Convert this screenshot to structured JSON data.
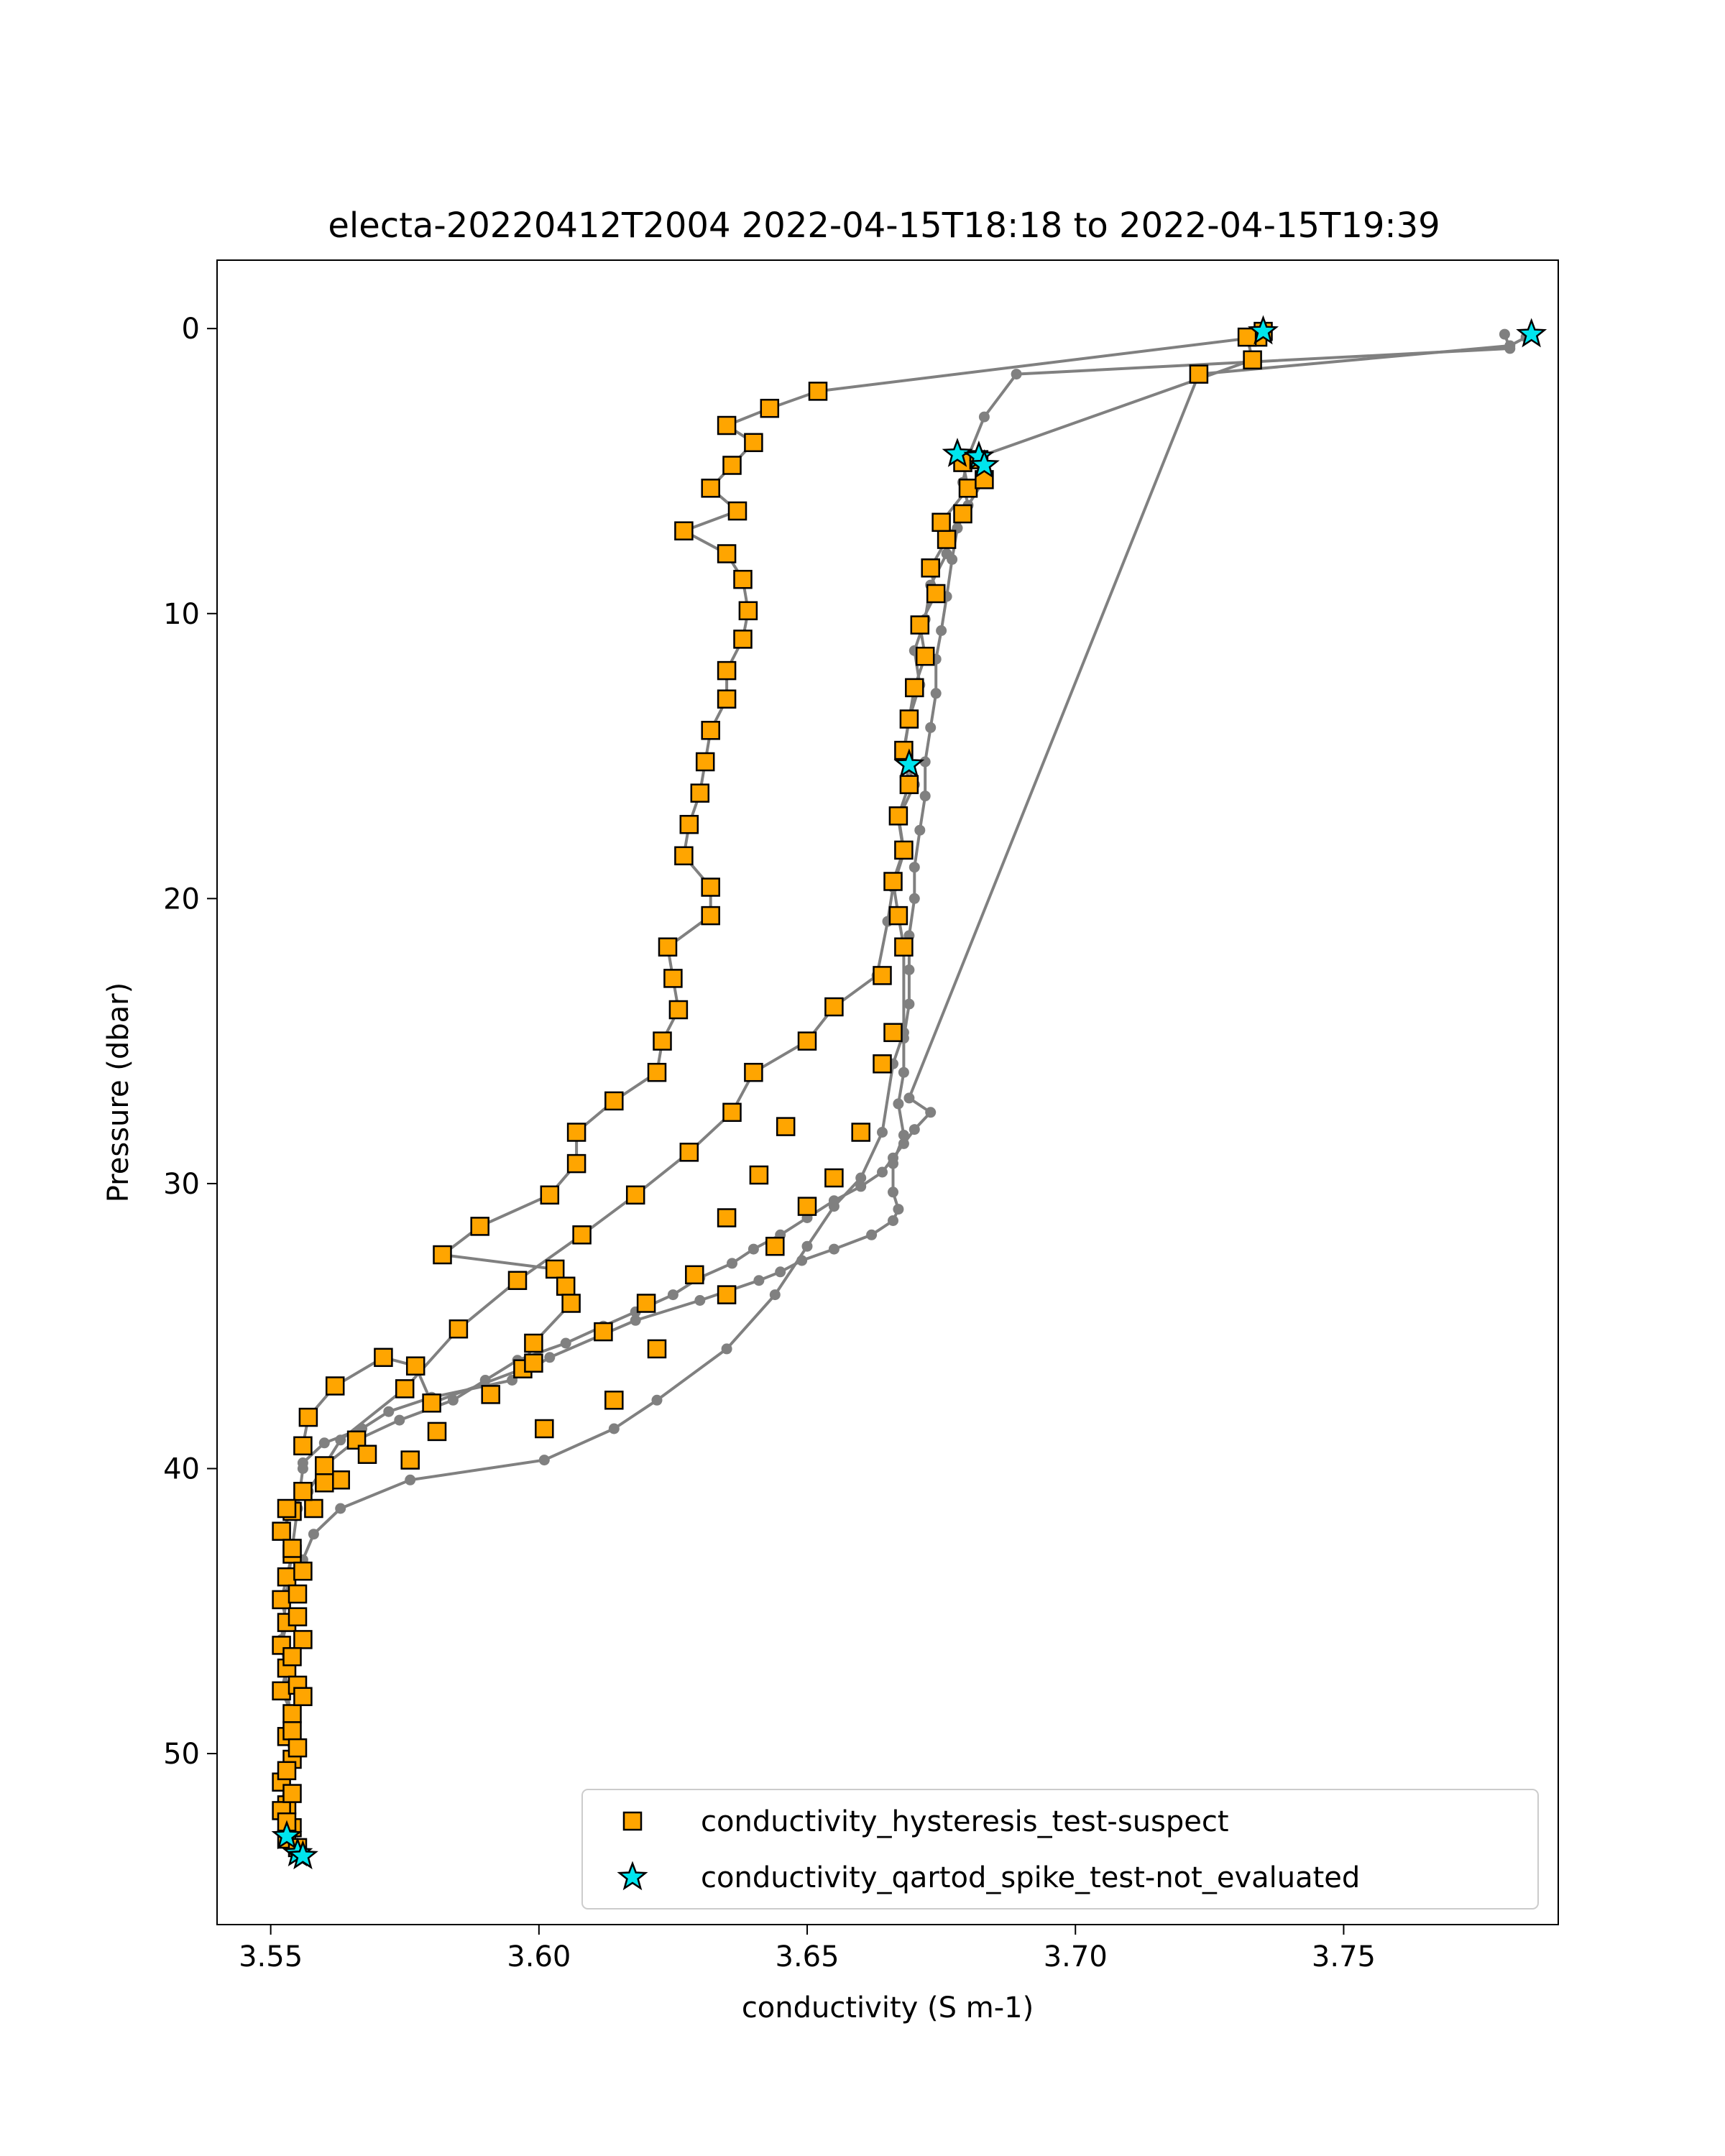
{
  "chart_data": {
    "type": "scatter",
    "title": "electa-20220412T2004 2022-04-15T18:18 to 2022-04-15T19:39",
    "xlabel": "conductivity (S m-1)",
    "ylabel": "Pressure (dbar)",
    "xlim": [
      3.54,
      3.79
    ],
    "ylim": [
      56,
      -2.4
    ],
    "y_inverted": true,
    "grid": false,
    "legend_position": "lower-right",
    "x_ticks": [
      "3.55",
      "3.60",
      "3.65",
      "3.70",
      "3.75"
    ],
    "x_tick_values": [
      3.55,
      3.6,
      3.65,
      3.7,
      3.75
    ],
    "y_ticks": [
      "0",
      "10",
      "20",
      "30",
      "40",
      "50"
    ],
    "y_tick_values": [
      0,
      10,
      20,
      30,
      40,
      50
    ],
    "colors": {
      "line": "#808080",
      "suspect_fill": "#FFA500",
      "spike_fill": "#00E5EE",
      "marker_edge": "#000000"
    },
    "profiles": [
      {
        "x": [
          3.735,
          3.734,
          3.652,
          3.643,
          3.635,
          3.64,
          3.636,
          3.632,
          3.637,
          3.627,
          3.635,
          3.638,
          3.639,
          3.638,
          3.635,
          3.635,
          3.632,
          3.631,
          3.63,
          3.628,
          3.627,
          3.632,
          3.632,
          3.624,
          3.625,
          3.626,
          3.623,
          3.622,
          3.614,
          3.607,
          3.607,
          3.602,
          3.589,
          3.582,
          3.603,
          3.605,
          3.606,
          3.599,
          3.597,
          3.58,
          3.577,
          3.571,
          3.562,
          3.557,
          3.556
        ],
        "y": [
          0.2,
          0.3,
          2.2,
          2.8,
          3.4,
          4.0,
          4.8,
          5.6,
          6.4,
          7.1,
          7.9,
          8.8,
          9.9,
          10.9,
          12.0,
          13.0,
          14.1,
          15.2,
          16.3,
          17.4,
          18.5,
          19.6,
          20.6,
          21.7,
          22.8,
          23.9,
          25.0,
          26.1,
          27.1,
          28.2,
          29.3,
          30.4,
          31.5,
          32.5,
          33.0,
          33.6,
          34.2,
          35.6,
          36.5,
          37.7,
          36.4,
          36.1,
          37.1,
          38.2,
          39.2
        ]
      },
      {
        "x": [
          3.78,
          3.781,
          3.689,
          3.683,
          3.68,
          3.679,
          3.68,
          3.678,
          3.677,
          3.676,
          3.675,
          3.674,
          3.674,
          3.673,
          3.672,
          3.672,
          3.671,
          3.67,
          3.67,
          3.669,
          3.669,
          3.669,
          3.668,
          3.668,
          3.667,
          3.668,
          3.666,
          3.666,
          3.667,
          3.666,
          3.662,
          3.655,
          3.649,
          3.645,
          3.641,
          3.63,
          3.618,
          3.602,
          3.595,
          3.58,
          3.572,
          3.567,
          3.56,
          3.556
        ],
        "y": [
          0.2,
          0.7,
          1.6,
          3.1,
          4.5,
          5.4,
          6.2,
          7.0,
          8.1,
          9.4,
          10.6,
          11.6,
          12.8,
          14.0,
          15.2,
          16.4,
          17.6,
          18.9,
          20.0,
          21.3,
          22.5,
          23.7,
          24.9,
          26.1,
          27.2,
          28.3,
          29.3,
          30.3,
          30.9,
          31.3,
          31.8,
          32.3,
          32.7,
          33.1,
          33.4,
          34.1,
          34.8,
          36.1,
          36.9,
          37.5,
          38.0,
          38.6,
          39.1,
          39.8
        ]
      },
      {
        "x": [
          3.784,
          3.781,
          3.723,
          3.669,
          3.673,
          3.67,
          3.668,
          3.666,
          3.664,
          3.66,
          3.655,
          3.65,
          3.645,
          3.64,
          3.636,
          3.63,
          3.625,
          3.618,
          3.612,
          3.605,
          3.596,
          3.59,
          3.584,
          3.574,
          3.566,
          3.56
        ],
        "y": [
          0.3,
          0.6,
          1.6,
          27.0,
          27.5,
          28.1,
          28.6,
          29.1,
          29.6,
          30.1,
          30.6,
          31.2,
          31.8,
          32.3,
          32.8,
          33.3,
          33.9,
          34.5,
          35.0,
          35.6,
          36.2,
          36.9,
          37.6,
          38.3,
          39.0,
          39.9
        ]
      },
      {
        "x": [
          3.732,
          3.733,
          3.679,
          3.68,
          3.675,
          3.676,
          3.673,
          3.672,
          3.67,
          3.671,
          3.669,
          3.668,
          3.67,
          3.667,
          3.668,
          3.666,
          3.665,
          3.663,
          3.655,
          3.65,
          3.64,
          3.636,
          3.628,
          3.618,
          3.608,
          3.596,
          3.585,
          3.575,
          3.563,
          3.557
        ],
        "y": [
          0.3,
          1.1,
          4.7,
          5.6,
          6.8,
          7.9,
          9.0,
          10.2,
          11.3,
          12.5,
          13.7,
          14.9,
          16.0,
          17.2,
          18.4,
          19.6,
          20.8,
          22.7,
          23.8,
          25.0,
          26.1,
          27.5,
          28.9,
          30.4,
          31.8,
          33.4,
          35.1,
          37.2,
          39.0,
          40.8
        ]
      },
      {
        "x": [
          3.682,
          3.683,
          3.679,
          3.676,
          3.673,
          3.674,
          3.671,
          3.672,
          3.67,
          3.669,
          3.668,
          3.669,
          3.667,
          3.668,
          3.666,
          3.667,
          3.668,
          3.668,
          3.666,
          3.664,
          3.66,
          3.655,
          3.65,
          3.644,
          3.635,
          3.622,
          3.614,
          3.601,
          3.576,
          3.563,
          3.558,
          3.556
        ],
        "y": [
          4.6,
          5.3,
          6.5,
          7.4,
          8.4,
          9.3,
          10.4,
          11.5,
          12.6,
          13.7,
          14.8,
          16.0,
          17.1,
          18.3,
          19.4,
          20.6,
          21.7,
          24.7,
          25.8,
          28.2,
          29.8,
          30.8,
          32.2,
          33.9,
          35.8,
          37.6,
          38.6,
          39.7,
          40.4,
          41.4,
          42.3,
          43.2
        ]
      },
      {
        "x": [
          3.556,
          3.554,
          3.552,
          3.554,
          3.553,
          3.552,
          3.553,
          3.552,
          3.553,
          3.552,
          3.554,
          3.553,
          3.554,
          3.552,
          3.553,
          3.554,
          3.553,
          3.552,
          3.553,
          3.554,
          3.553,
          3.552,
          3.553,
          3.554,
          3.555,
          3.556
        ],
        "y": [
          40.8,
          41.5,
          42.2,
          43.0,
          43.8,
          44.6,
          45.4,
          46.2,
          47.0,
          47.8,
          48.6,
          49.4,
          50.2,
          51.0,
          51.8,
          52.6,
          53.2,
          52.0,
          50.6,
          49.2,
          47.6,
          46.0,
          44.4,
          42.8,
          41.4,
          40.0
        ]
      }
    ],
    "series": [
      {
        "name": "conductivity_hysteresis_test-suspect",
        "marker": "square",
        "color": "#FFA500",
        "x": [
          3.735,
          3.734,
          3.732,
          3.733,
          3.723,
          3.652,
          3.643,
          3.635,
          3.64,
          3.636,
          3.632,
          3.637,
          3.627,
          3.635,
          3.638,
          3.639,
          3.638,
          3.635,
          3.635,
          3.632,
          3.631,
          3.63,
          3.628,
          3.627,
          3.632,
          3.632,
          3.624,
          3.625,
          3.626,
          3.623,
          3.622,
          3.614,
          3.607,
          3.607,
          3.602,
          3.589,
          3.582,
          3.603,
          3.605,
          3.606,
          3.599,
          3.597,
          3.58,
          3.577,
          3.571,
          3.562,
          3.557,
          3.556,
          3.679,
          3.68,
          3.682,
          3.683,
          3.679,
          3.676,
          3.675,
          3.673,
          3.674,
          3.671,
          3.672,
          3.67,
          3.669,
          3.668,
          3.669,
          3.667,
          3.668,
          3.666,
          3.667,
          3.668,
          3.666,
          3.664,
          3.66,
          3.655,
          3.65,
          3.644,
          3.635,
          3.622,
          3.614,
          3.601,
          3.576,
          3.563,
          3.558,
          3.664,
          3.655,
          3.65,
          3.64,
          3.636,
          3.628,
          3.618,
          3.608,
          3.596,
          3.585,
          3.575,
          3.566,
          3.56,
          3.646,
          3.641,
          3.635,
          3.629,
          3.62,
          3.612,
          3.599,
          3.591,
          3.581,
          3.568,
          3.56,
          3.556,
          3.554,
          3.552,
          3.554,
          3.553,
          3.552,
          3.553,
          3.552,
          3.553,
          3.552,
          3.554,
          3.553,
          3.554,
          3.552,
          3.553,
          3.554,
          3.553,
          3.552,
          3.553,
          3.554,
          3.555,
          3.556,
          3.555,
          3.554,
          3.553,
          3.556,
          3.555,
          3.554,
          3.556,
          3.555,
          3.554,
          3.553,
          3.555
        ],
        "y": [
          0.1,
          0.3,
          0.3,
          1.1,
          1.6,
          2.2,
          2.8,
          3.4,
          4.0,
          4.8,
          5.6,
          6.4,
          7.1,
          7.9,
          8.8,
          9.9,
          10.9,
          12.0,
          13.0,
          14.1,
          15.2,
          16.3,
          17.4,
          18.5,
          19.6,
          20.6,
          21.7,
          22.8,
          23.9,
          25.0,
          26.1,
          27.1,
          28.2,
          29.3,
          30.4,
          31.5,
          32.5,
          33.0,
          33.6,
          34.2,
          35.6,
          36.5,
          37.7,
          36.4,
          36.1,
          37.1,
          38.2,
          39.2,
          4.7,
          5.6,
          4.6,
          5.3,
          6.5,
          7.4,
          6.8,
          8.4,
          9.3,
          10.4,
          11.5,
          12.6,
          13.7,
          14.8,
          16.0,
          17.1,
          18.3,
          19.4,
          20.6,
          21.7,
          24.7,
          25.8,
          28.2,
          29.8,
          30.8,
          32.2,
          33.9,
          35.8,
          37.6,
          38.6,
          39.7,
          40.4,
          41.4,
          22.7,
          23.8,
          25.0,
          26.1,
          27.5,
          28.9,
          30.4,
          31.8,
          33.4,
          35.1,
          37.2,
          39.0,
          39.9,
          28.0,
          29.7,
          31.2,
          33.2,
          34.2,
          35.2,
          36.3,
          37.4,
          38.7,
          39.5,
          40.5,
          40.8,
          41.5,
          42.2,
          43.0,
          43.8,
          44.6,
          45.4,
          46.2,
          47.0,
          47.8,
          48.6,
          49.4,
          50.2,
          51.0,
          51.8,
          52.6,
          53.0,
          52.0,
          50.6,
          49.2,
          47.6,
          46.0,
          44.4,
          42.8,
          41.4,
          43.6,
          45.2,
          46.6,
          48.0,
          49.8,
          51.4,
          52.4,
          53.3
        ]
      },
      {
        "name": "conductivity_qartod_spike_test-not_evaluated",
        "marker": "star",
        "color": "#00E5EE",
        "x": [
          3.735,
          3.785,
          3.678,
          3.682,
          3.683,
          3.669,
          3.553,
          3.555,
          3.556
        ],
        "y": [
          0.1,
          0.2,
          4.4,
          4.5,
          4.8,
          15.3,
          52.9,
          53.5,
          53.6
        ]
      }
    ]
  }
}
